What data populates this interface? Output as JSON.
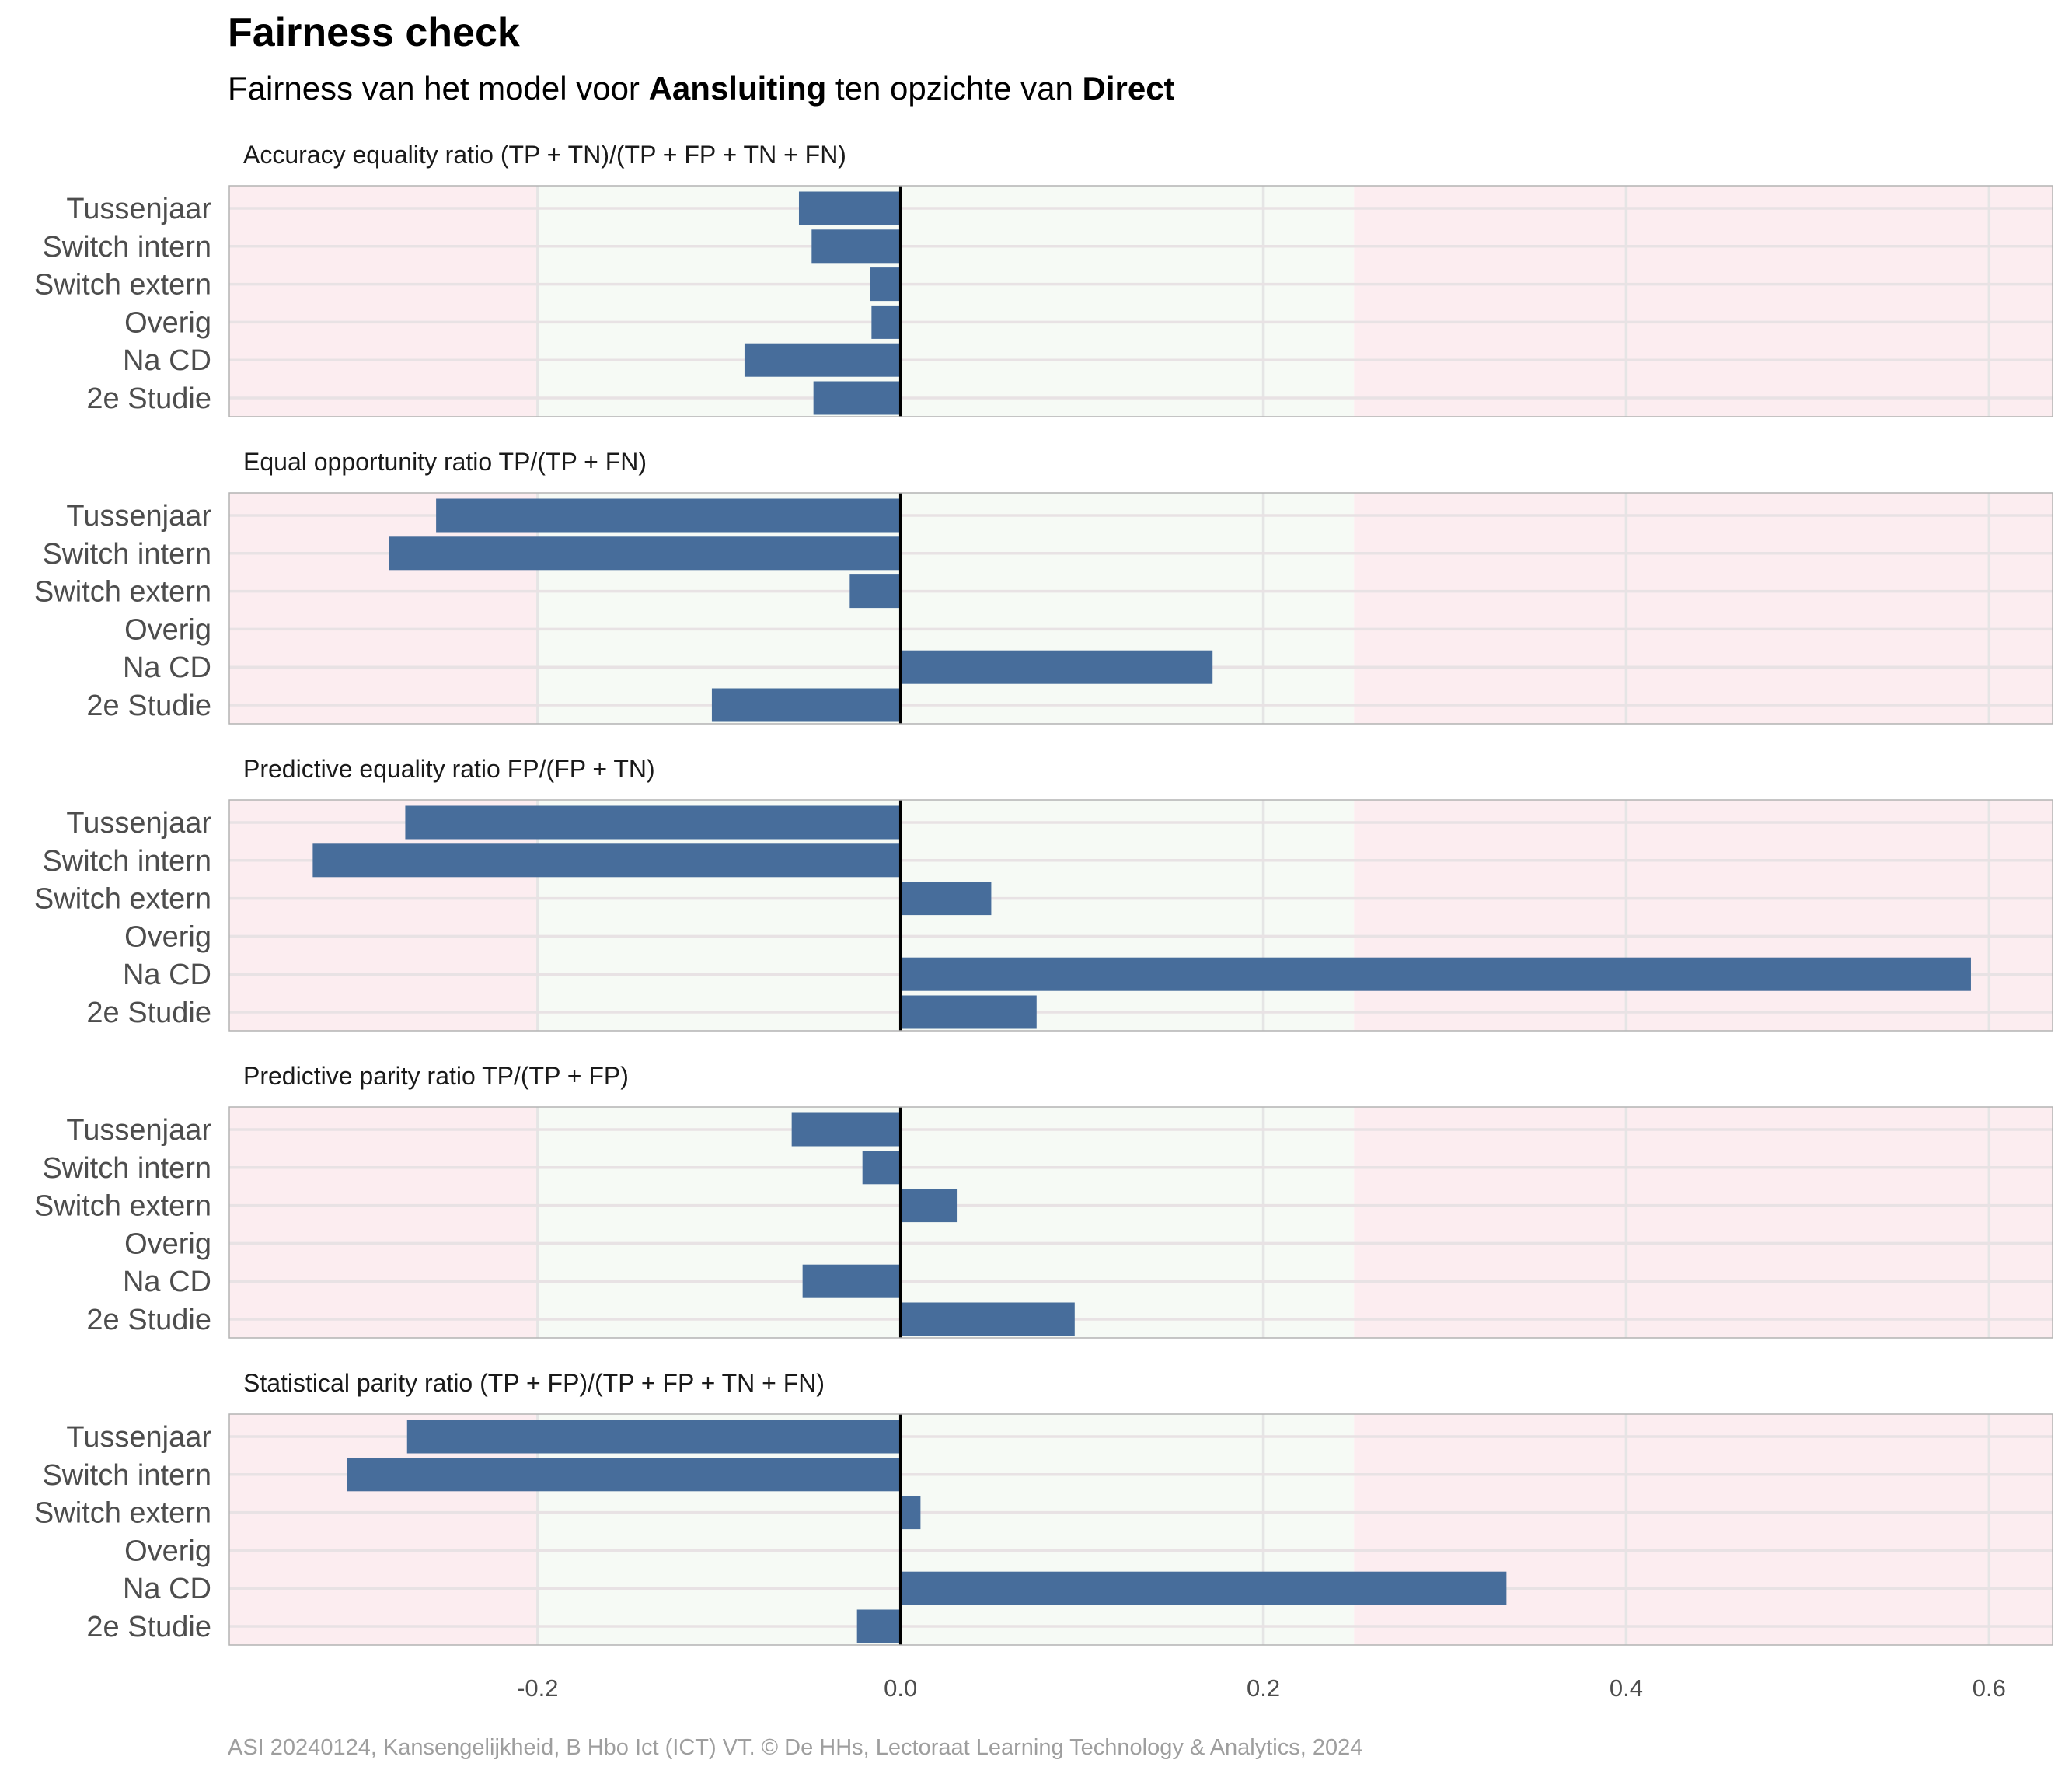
{
  "title": "Fairness check",
  "subtitle": {
    "prefix": "Fairness van het model voor ",
    "target": "Aansluiting",
    "middle": " ten opzichte van ",
    "reference": "Direct"
  },
  "caption": "ASI 20240124, Kansengelijkheid, B Hbo Ict (ICT) VT. © De HHs, Lectoraat Learning Technology & Analytics, 2024",
  "chart_data": {
    "type": "bar",
    "orientation": "horizontal",
    "grid": true,
    "categories": [
      "Tussenjaar",
      "Switch intern",
      "Switch extern",
      "Overig",
      "Na CD",
      "2e Studie"
    ],
    "xlim": [
      -0.37,
      0.635
    ],
    "xticks": [
      -0.2,
      0.0,
      0.2,
      0.4,
      0.6
    ],
    "xtick_labels": [
      "-0.2",
      "0.0",
      "0.2",
      "0.4",
      "0.6"
    ],
    "fair_band": [
      -0.2,
      0.25
    ],
    "colors": {
      "bar": "#476d9b",
      "fair_zone": "#f6faf5",
      "unfair_zone": "#fcedf0",
      "zero_line": "#000000",
      "panel_border": "#b3b3b3"
    },
    "facets": [
      {
        "name": "Accuracy equality ratio",
        "formula": "(TP + TN)/(TP + FP + TN + FN)",
        "values": [
          -0.056,
          -0.049,
          -0.017,
          -0.016,
          -0.086,
          -0.048
        ]
      },
      {
        "name": "Equal opportunity ratio",
        "formula": "TP/(TP + FN)",
        "values": [
          -0.256,
          -0.282,
          -0.028,
          0.0,
          0.172,
          -0.104
        ]
      },
      {
        "name": "Predictive equality ratio",
        "formula": "FP/(FP + TN)",
        "values": [
          -0.273,
          -0.324,
          0.05,
          0.0,
          0.59,
          0.075
        ]
      },
      {
        "name": "Predictive parity ratio",
        "formula": "TP/(TP + FP)",
        "values": [
          -0.06,
          -0.021,
          0.031,
          0.0,
          -0.054,
          0.096
        ]
      },
      {
        "name": "Statistical parity ratio",
        "formula": "(TP + FP)/(TP + FP + TN + FN)",
        "values": [
          -0.272,
          -0.305,
          0.011,
          0.0,
          0.334,
          -0.024
        ]
      }
    ]
  }
}
